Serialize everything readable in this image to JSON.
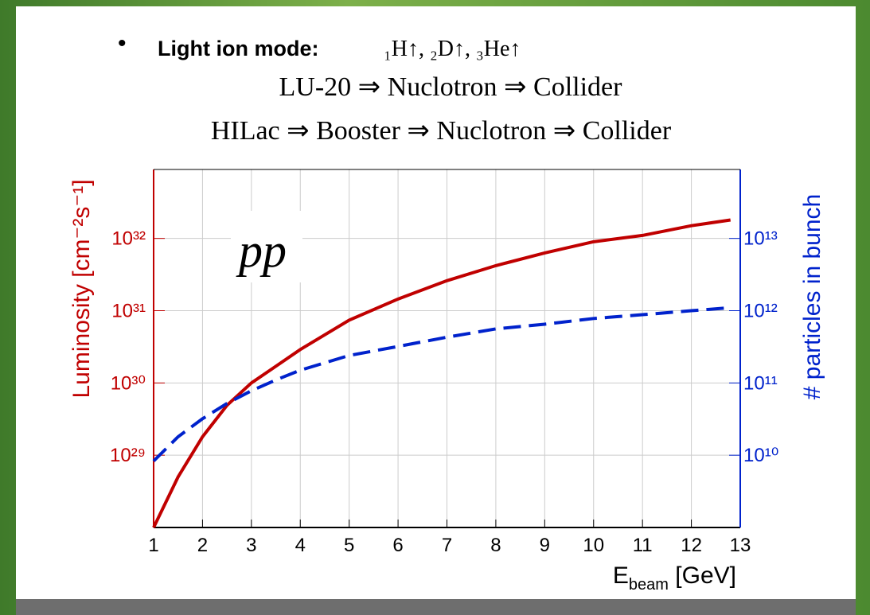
{
  "slide": {
    "mode_label": "Light ion mode:",
    "species": "₁H↑, ₂D↑, ₃He↑",
    "chains": [
      "LU-20 ⇒ Nuclotron ⇒ Collider",
      "HILac ⇒ Booster ⇒ Nuclotron ⇒ Collider"
    ]
  },
  "chart_data": {
    "type": "line",
    "annotation": "pp",
    "xlabel": {
      "text": "E",
      "sub": "beam",
      "rest": " [GeV]"
    },
    "ylabel": "Luminosity [cm⁻²s⁻¹]",
    "y2label": "# particles in bunch",
    "x": [
      1,
      1.5,
      2,
      2.5,
      3,
      3.5,
      4,
      5,
      6,
      7,
      8,
      9,
      10,
      11,
      12,
      12.8
    ],
    "series": [
      {
        "color": "#c00000",
        "style": "solid",
        "axis": "y",
        "values": [
          1e+28,
          5e+28,
          1.8e+29,
          4.9e+29,
          1e+30,
          1.7e+30,
          2.9e+30,
          7.4e+30,
          1.45e+31,
          2.6e+31,
          4.2e+31,
          6.3e+31,
          9e+31,
          1.1e+32,
          1.5e+32,
          1.8e+32
        ]
      },
      {
        "color": "#0022cc",
        "style": "dashed",
        "axis": "y2",
        "values": [
          8300000000.0,
          18000000000.0,
          32000000000.0,
          52000000000.0,
          78000000000.0,
          110000000000.0,
          150000000000.0,
          240000000000.0,
          320000000000.0,
          430000000000.0,
          560000000000.0,
          650000000000.0,
          780000000000.0,
          880000000000.0,
          1000000000000.0,
          1100000000000.0
        ]
      }
    ],
    "xlim": [
      1,
      13
    ],
    "xticks": [
      1,
      2,
      3,
      4,
      5,
      6,
      7,
      8,
      9,
      10,
      11,
      12,
      13
    ],
    "ylim": [
      1e+28,
      9e+32
    ],
    "ylog": true,
    "yticks": [
      {
        "value": 1e+29,
        "label": "10²⁹"
      },
      {
        "value": 1e+30,
        "label": "10³⁰"
      },
      {
        "value": 1e+31,
        "label": "10³¹"
      },
      {
        "value": 1e+32,
        "label": "10³²"
      }
    ],
    "y2lim": [
      1000000000.0,
      90000000000000.0
    ],
    "y2log": true,
    "y2ticks": [
      {
        "value": 10000000000.0,
        "label": "10¹⁰"
      },
      {
        "value": 100000000000.0,
        "label": "10¹¹"
      },
      {
        "value": 1000000000000.0,
        "label": "10¹²"
      },
      {
        "value": 10000000000000.0,
        "label": "10¹³"
      }
    ],
    "ycolor": "#c00000",
    "y2color": "#0022cc",
    "grid": true
  }
}
